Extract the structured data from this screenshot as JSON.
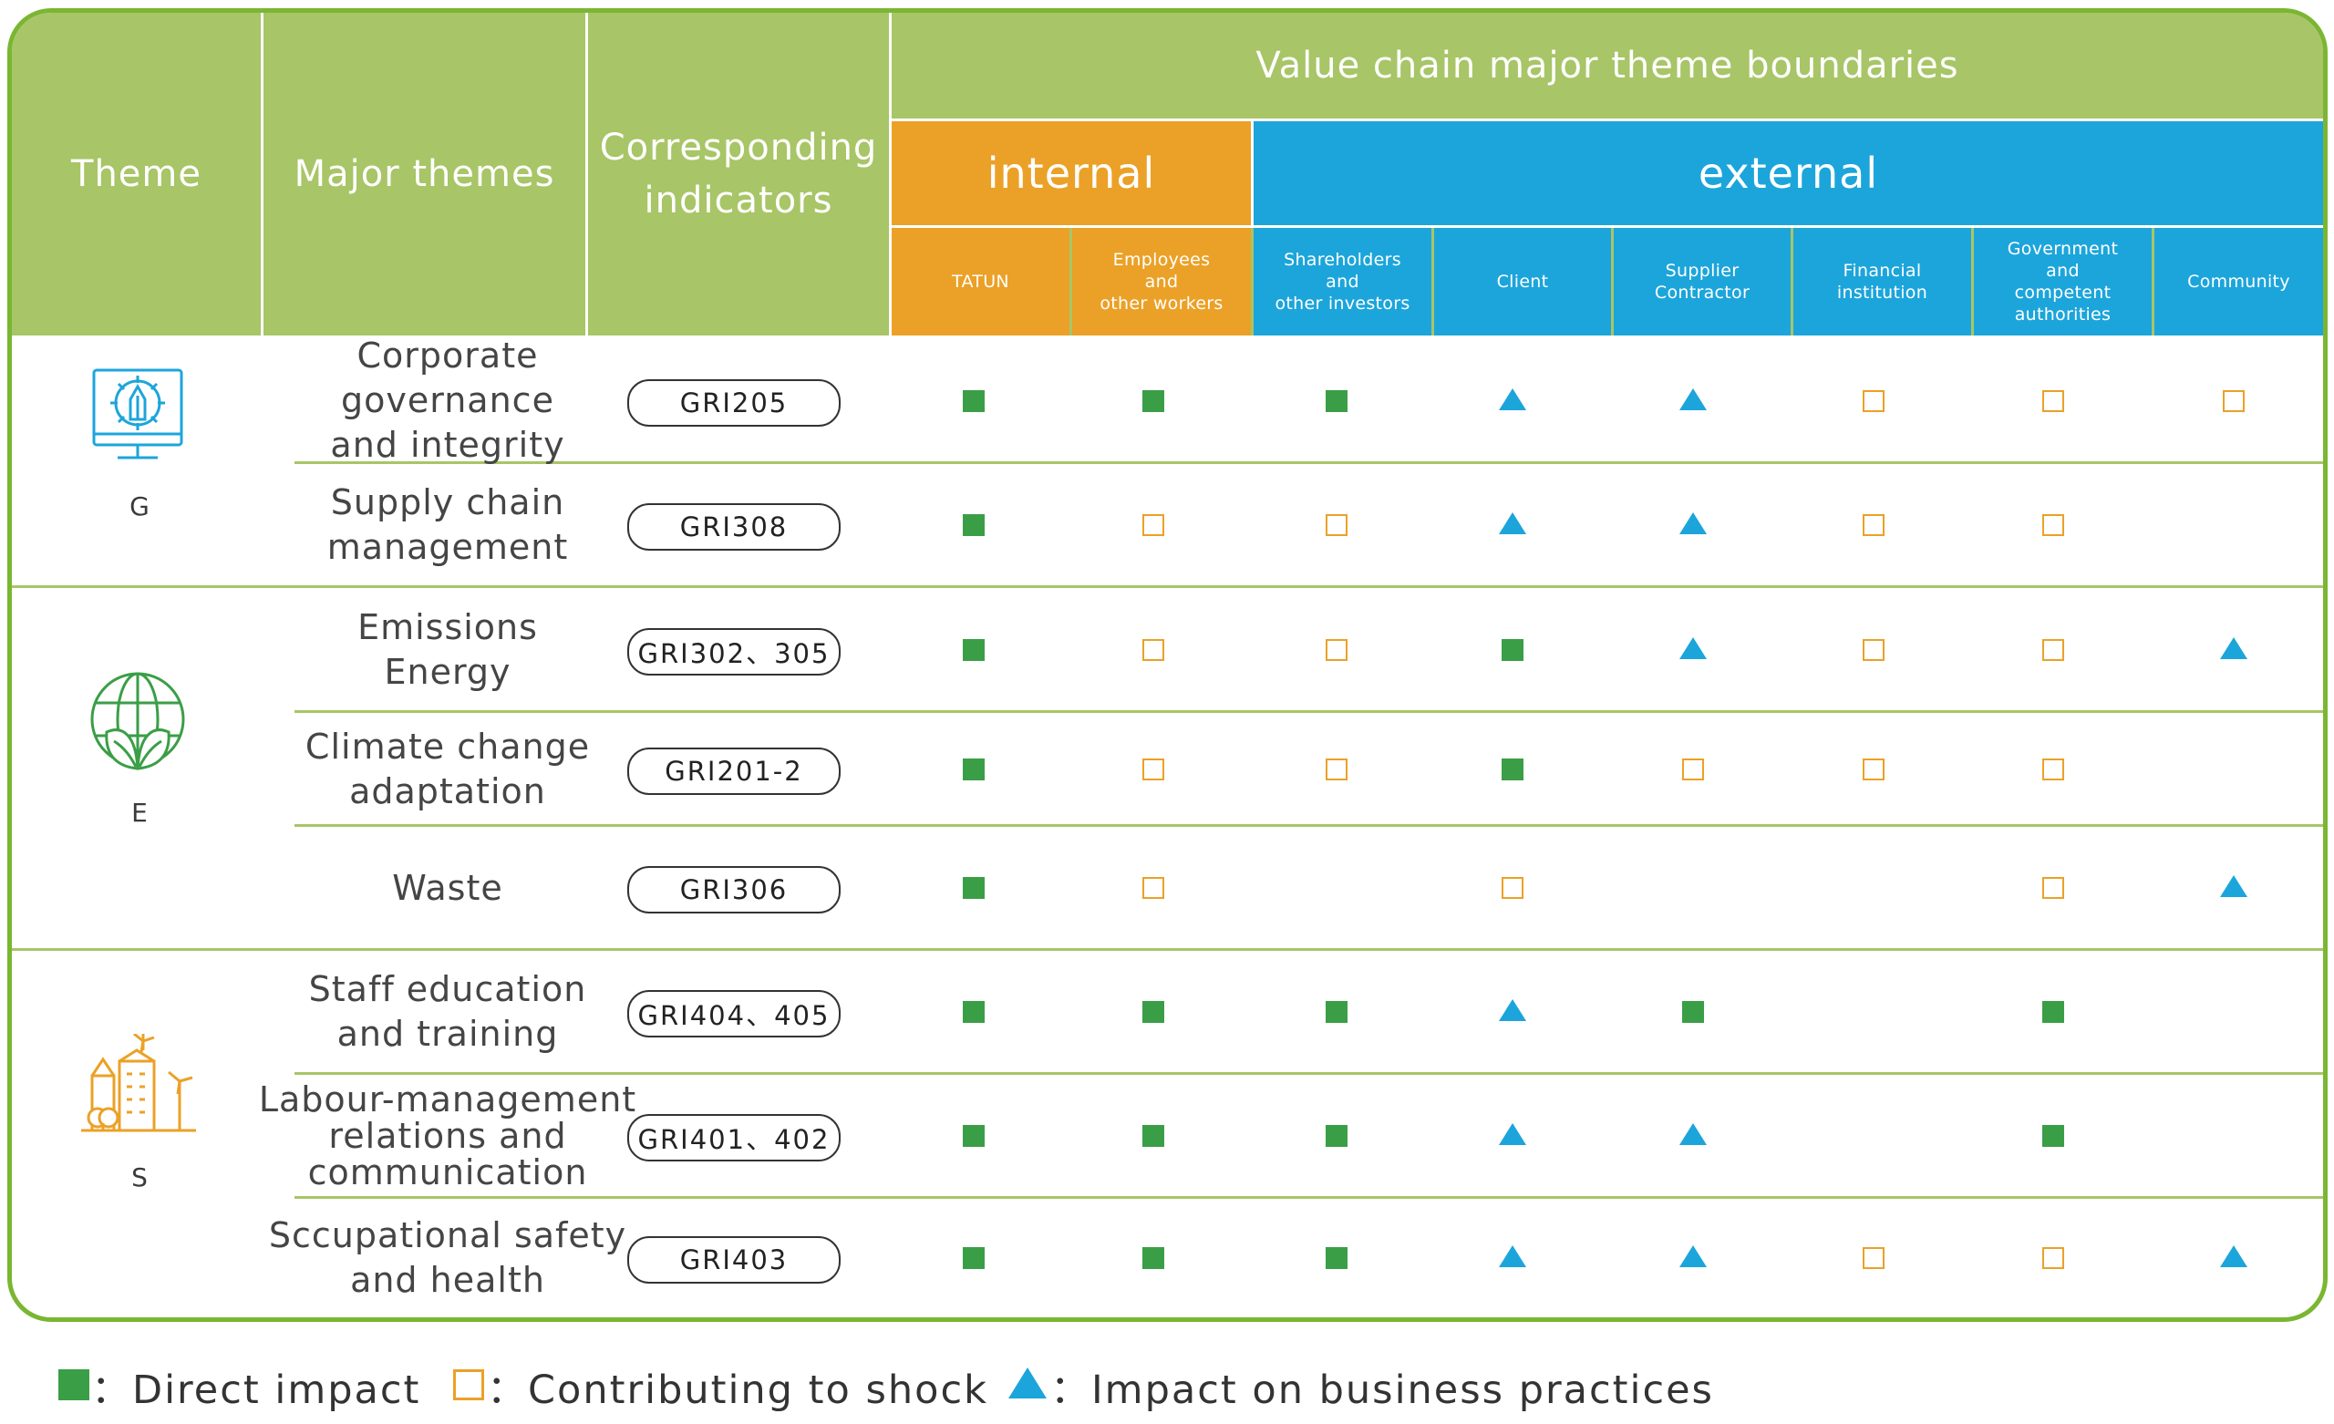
{
  "header": {
    "theme": "Theme",
    "major_themes": "Major themes",
    "indicators_line1": "Corresponding",
    "indicators_line2": "indicators",
    "value_chain": "Value chain major theme boundaries",
    "internal": "internal",
    "external": "external",
    "stakeholders": [
      [
        "TATUN"
      ],
      [
        "Employees",
        "and",
        "other workers"
      ],
      [
        "Shareholders",
        "and",
        "other investors"
      ],
      [
        "Client"
      ],
      [
        "Supplier",
        "Contractor"
      ],
      [
        "Financial",
        "institution"
      ],
      [
        "Government",
        "and",
        "competent",
        "authorities"
      ],
      [
        "Community"
      ]
    ]
  },
  "groups": [
    {
      "letter": "G",
      "icon": "governance-gear-pen-icon",
      "color": "#1ca5db"
    },
    {
      "letter": "E",
      "icon": "environment-globe-leaves-icon",
      "color": "#3a9e46"
    },
    {
      "letter": "S",
      "icon": "social-city-windmill-icon",
      "color": "#eba127"
    }
  ],
  "rows": [
    {
      "theme": [
        "Corporate governance",
        "and integrity"
      ],
      "indicator": "GRI205",
      "impacts": [
        "direct",
        "direct",
        "direct",
        "business",
        "business",
        "contributing",
        "contributing",
        "contributing"
      ]
    },
    {
      "theme": [
        "Supply chain",
        "management"
      ],
      "indicator": "GRI308",
      "impacts": [
        "direct",
        "contributing",
        "contributing",
        "business",
        "business",
        "contributing",
        "contributing",
        ""
      ]
    },
    {
      "theme": [
        "Emissions",
        "Energy"
      ],
      "indicator": "GRI302、305",
      "impacts": [
        "direct",
        "contributing",
        "contributing",
        "direct",
        "business",
        "contributing",
        "contributing",
        "business"
      ]
    },
    {
      "theme": [
        "Climate change",
        "adaptation"
      ],
      "indicator": "GRI201-2",
      "impacts": [
        "direct",
        "contributing",
        "contributing",
        "direct",
        "contributing",
        "contributing",
        "contributing",
        ""
      ]
    },
    {
      "theme": [
        "Waste"
      ],
      "indicator": "GRI306",
      "impacts": [
        "direct",
        "contributing",
        "",
        "contributing",
        "",
        "",
        "contributing",
        "business"
      ]
    },
    {
      "theme": [
        "Staff education",
        "and training"
      ],
      "indicator": "GRI404、405",
      "impacts": [
        "direct",
        "direct",
        "direct",
        "business",
        "direct",
        "",
        "direct",
        ""
      ]
    },
    {
      "theme": [
        "Labour-management",
        "relations and",
        "communication"
      ],
      "indicator": "GRI401、402",
      "impacts": [
        "direct",
        "direct",
        "direct",
        "business",
        "business",
        "",
        "direct",
        ""
      ]
    },
    {
      "theme": [
        "Sccupational safety",
        "and health"
      ],
      "indicator": "GRI403",
      "impacts": [
        "direct",
        "direct",
        "direct",
        "business",
        "business",
        "contributing",
        "contributing",
        "business"
      ]
    }
  ],
  "legend": {
    "direct": "：Direct impact",
    "contributing": "：Contributing to shock",
    "business": "：Impact on business practices"
  },
  "colors": {
    "header_green": "#a8c567",
    "internal_orange": "#eba127",
    "external_blue": "#1ca5db",
    "direct_green": "#3a9e46",
    "frame_green": "#7ab632"
  }
}
